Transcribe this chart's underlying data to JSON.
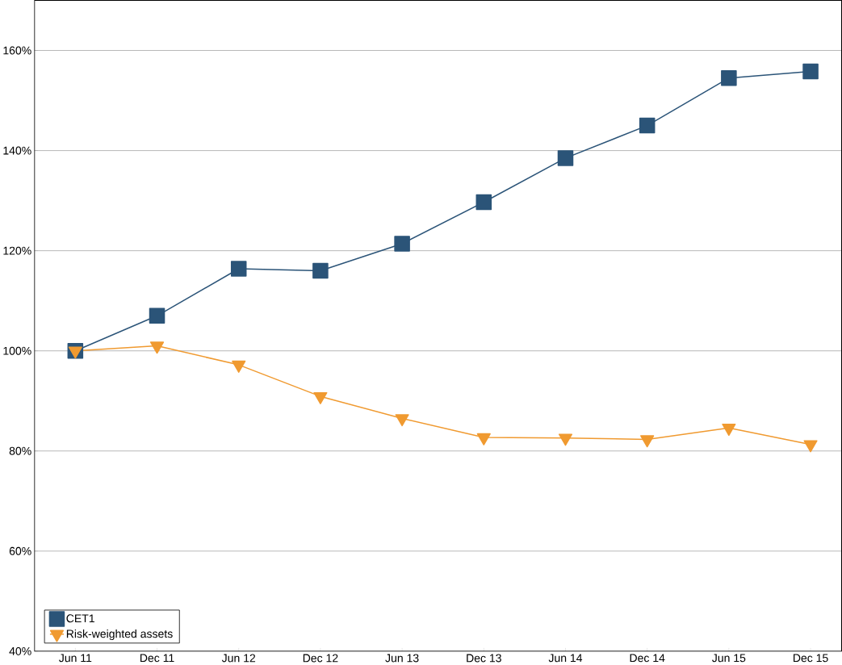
{
  "chart_data": {
    "type": "line",
    "categories": [
      "Jun 11",
      "Dec 11",
      "Jun 12",
      "Dec 12",
      "Jun 13",
      "Dec 13",
      "Jun 14",
      "Dec 14",
      "Jun 15",
      "Dec 15"
    ],
    "series": [
      {
        "name": "CET1",
        "color": "#2b5478",
        "marker": "square",
        "values": [
          100,
          107,
          116.4,
          116,
          121.4,
          129.7,
          138.5,
          145,
          154.5,
          155.8
        ]
      },
      {
        "name": "Risk-weighted assets",
        "color": "#f09a30",
        "marker": "triangle",
        "values": [
          100,
          101,
          97.2,
          90.9,
          86.5,
          82.7,
          82.6,
          82.3,
          84.6,
          81.3
        ]
      }
    ],
    "ylim": [
      40,
      170
    ],
    "yticks": [
      {
        "value": 40,
        "label": "40%"
      },
      {
        "value": 60,
        "label": "60%"
      },
      {
        "value": 80,
        "label": "80%"
      },
      {
        "value": 100,
        "label": "100%"
      },
      {
        "value": 120,
        "label": "120%"
      },
      {
        "value": 140,
        "label": "140%"
      },
      {
        "value": 160,
        "label": "160%"
      }
    ],
    "grid": "y",
    "legend": "bottom left",
    "line_style": "solid"
  }
}
